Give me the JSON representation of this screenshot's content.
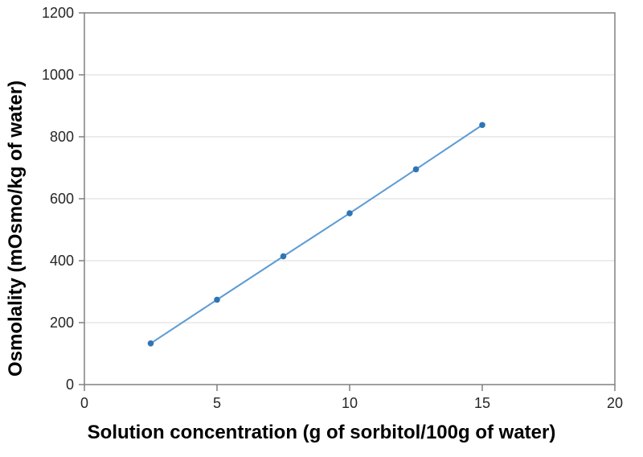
{
  "chart_data": {
    "type": "scatter",
    "title": "",
    "xlabel": "Solution concentration (g of sorbitol/100g of water)",
    "ylabel": "Osmolality (mOsmo/kg of water)",
    "xlim": [
      0,
      20
    ],
    "ylim": [
      0,
      1200
    ],
    "xticks": [
      0,
      5,
      10,
      15,
      20
    ],
    "yticks": [
      0,
      200,
      400,
      600,
      800,
      1000,
      1200
    ],
    "grid": "horizontal-only",
    "legend": "none",
    "plot_border": true,
    "series": [
      {
        "name": "osmolality-vs-concentration",
        "marker": "circle",
        "x": [
          2.5,
          5,
          7.5,
          10,
          12.5,
          15
        ],
        "y": [
          133,
          274,
          414,
          553,
          695,
          838
        ]
      }
    ],
    "colors": {
      "line": "#5B9BD5",
      "marker": "#2E75B6",
      "axis": "#808080",
      "gridline": "#D9D9D9",
      "tick_label": "#262626",
      "title": "#000000",
      "background": "#FFFFFF"
    }
  }
}
